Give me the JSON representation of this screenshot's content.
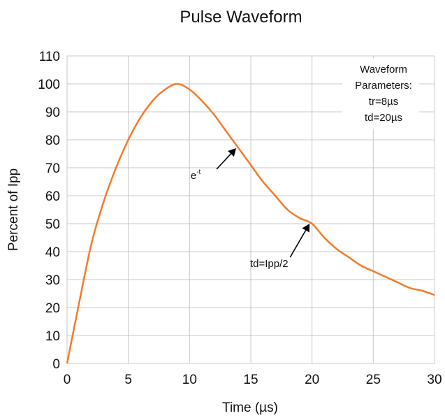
{
  "chart_data": {
    "type": "line",
    "title": "Pulse Waveform",
    "xlabel": "Time (µs)",
    "ylabel": "Percent of  Ipp",
    "xlim": [
      0,
      30
    ],
    "ylim": [
      0,
      110
    ],
    "x_ticks": [
      0,
      5,
      10,
      15,
      20,
      25,
      30
    ],
    "y_ticks": [
      0,
      10,
      20,
      30,
      40,
      50,
      60,
      70,
      80,
      90,
      100,
      110
    ],
    "grid": true,
    "color": "#f47a2a",
    "series": [
      {
        "x": [
          0,
          1,
          2,
          3,
          4,
          5,
          6,
          7,
          8,
          9,
          10,
          11,
          12,
          13,
          14,
          15,
          16,
          17,
          18,
          19,
          20,
          21,
          22,
          23,
          24,
          25,
          26,
          27,
          28,
          29,
          30
        ],
        "values": [
          0,
          22,
          43,
          58,
          70,
          80,
          88,
          94,
          98,
          100,
          98,
          94,
          89,
          83,
          77,
          71,
          65,
          60,
          55,
          52,
          50,
          45,
          41,
          38,
          35,
          33,
          31,
          29,
          27,
          26,
          24.5
        ]
      }
    ],
    "parameters_box": {
      "heading_line1": "Waveform",
      "heading_line2": "Parameters:",
      "tr": "tr=8µs",
      "td": "td=20µs"
    },
    "annotations": [
      {
        "text": "e",
        "superscript": "-t",
        "point": [
          13.8,
          77
        ],
        "label_pos": [
          10.5,
          67
        ]
      },
      {
        "text": "td=Ipp/2",
        "point": [
          19.8,
          50
        ],
        "label_pos": [
          16.5,
          35.5
        ]
      }
    ]
  }
}
